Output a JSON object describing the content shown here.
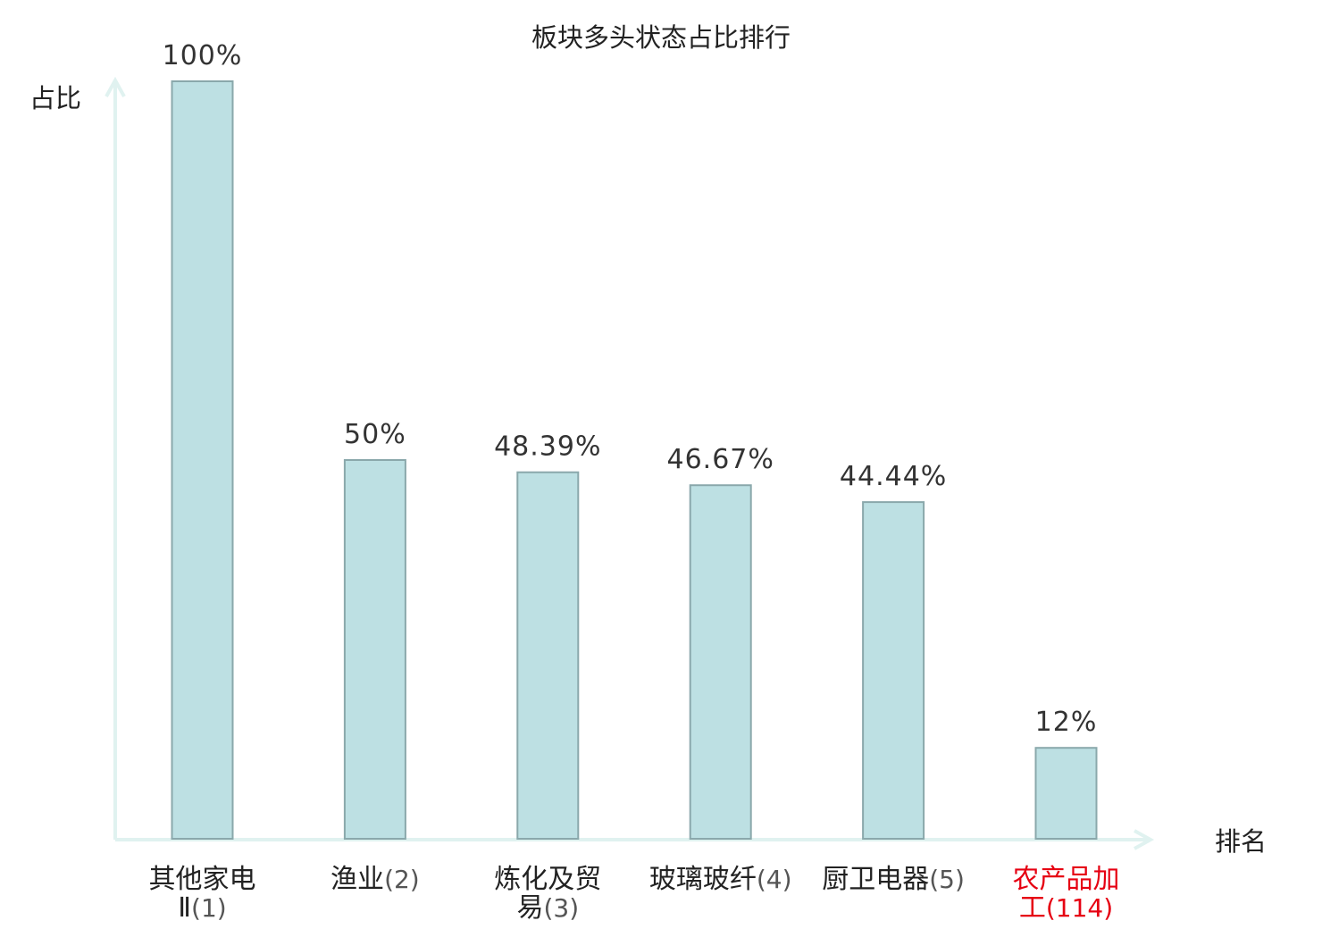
{
  "chart_data": {
    "type": "bar",
    "title": "板块多头状态占比排行",
    "ylabel": "占比",
    "xlabel": "排名",
    "ylim": [
      0,
      100
    ],
    "categories": [
      {
        "name_lines": [
          "其他家电",
          "Ⅱ"
        ],
        "rank": "(1)"
      },
      {
        "name_lines": [
          "渔业"
        ],
        "rank": "(2)"
      },
      {
        "name_lines": [
          "炼化及贸",
          "易"
        ],
        "rank": "(3)"
      },
      {
        "name_lines": [
          "玻璃玻纤"
        ],
        "rank": "(4)"
      },
      {
        "name_lines": [
          "厨卫电器"
        ],
        "rank": "(5)"
      },
      {
        "name_lines": [
          "农产品加",
          "工"
        ],
        "rank": "(114)",
        "highlight": true
      }
    ],
    "values": [
      100,
      50,
      48.39,
      46.67,
      44.44,
      12
    ],
    "value_labels": [
      "100%",
      "50%",
      "48.39%",
      "46.67%",
      "44.44%",
      "12%"
    ],
    "grid": false,
    "colors": {
      "bar_fill": "#bde0e3",
      "bar_stroke": "#8aa8ab",
      "axis": "#e0f2f0",
      "highlight": "#e60012"
    }
  }
}
